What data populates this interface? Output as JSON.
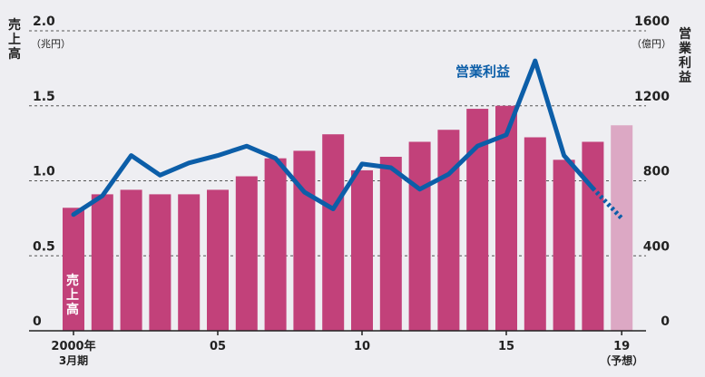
{
  "chart_data": {
    "type": "bar",
    "x_tick_labels": [
      "2000年",
      "05",
      "10",
      "15",
      "19"
    ],
    "x_tick_sublabels": {
      "2000年": "3月期",
      "19": "（予想）"
    },
    "left_axis": {
      "title": "売上高",
      "unit": "（兆円）",
      "ticks": [
        "2.0",
        "1.5",
        "1.0",
        "0.5",
        "0"
      ],
      "ylim": [
        0,
        2.0
      ]
    },
    "right_axis": {
      "title": "営業利益",
      "unit": "（億円）",
      "ticks": [
        "1600",
        "1200",
        "800",
        "400",
        "0"
      ],
      "ylim": [
        0,
        1600
      ]
    },
    "years": [
      2000,
      2001,
      2002,
      2003,
      2004,
      2005,
      2006,
      2007,
      2008,
      2009,
      2010,
      2011,
      2012,
      2013,
      2014,
      2015,
      2016,
      2017,
      2018,
      2019
    ],
    "series": [
      {
        "name": "売上高",
        "kind": "bar",
        "axis": "left",
        "values": [
          0.82,
          0.91,
          0.94,
          0.91,
          0.91,
          0.94,
          1.03,
          1.15,
          1.2,
          1.31,
          1.07,
          1.16,
          1.26,
          1.34,
          1.48,
          1.5,
          1.29,
          1.14,
          1.26,
          1.37
        ],
        "forecast_index": 19,
        "color": "#c2417a",
        "forecast_color": "#dca8c4"
      },
      {
        "name": "営業利益",
        "kind": "line",
        "axis": "right",
        "values": [
          620,
          720,
          935,
          830,
          895,
          935,
          985,
          920,
          740,
          650,
          890,
          870,
          755,
          835,
          985,
          1045,
          1440,
          935,
          760,
          600
        ],
        "forecast_from_index": 18,
        "color": "#0c5ea8"
      }
    ],
    "grid": true
  }
}
